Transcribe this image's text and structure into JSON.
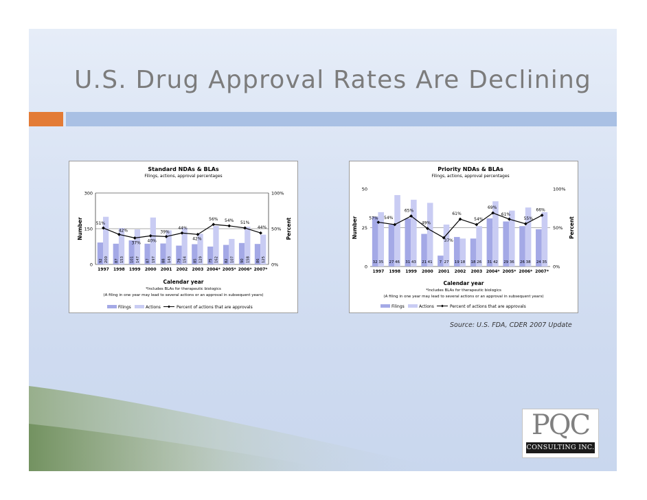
{
  "slide": {
    "title": "U.S. Drug Approval Rates Are Declining",
    "source": "Source: U.S. FDA, CDER 2007 Update",
    "colors": {
      "orange_bar": "#e37b36",
      "blue_bar": "#a9c0e4",
      "filings": "#a4a9e6",
      "actions": "#c9ccf3",
      "line": "#000000"
    }
  },
  "logo": {
    "name": "PQC",
    "subtitle": "CONSULTING INC."
  },
  "chart_data": [
    {
      "type": "bar+line",
      "title": "Standard NDAs & BLAs",
      "subtitle": "Filings, actions, approval percentages",
      "xlabel": "Calendar year",
      "ylabel": "Number",
      "y2label": "Percent",
      "ylim": [
        0,
        300
      ],
      "y_ticks": [
        "300",
        "150",
        "0"
      ],
      "y2_ticks": [
        "100%",
        "50%",
        "0%"
      ],
      "categories": [
        "1997",
        "1998",
        "1999",
        "2000",
        "2001",
        "2002",
        "2003",
        "2004*",
        "2005*",
        "2006*",
        "2007*"
      ],
      "series": [
        {
          "name": "Filings",
          "values": [
            92,
            87,
            101,
            87,
            88,
            79,
            85,
            75,
            82,
            90,
            86
          ]
        },
        {
          "name": "Actions",
          "values": [
            200,
            153,
            147,
            197,
            143,
            154,
            129,
            162,
            107,
            158,
            125
          ]
        },
        {
          "name": "Percent of actions that are approvals",
          "values": [
            51,
            42,
            37,
            40,
            39,
            44,
            42,
            56,
            54,
            51,
            44
          ]
        }
      ],
      "value_labels": [
        [
          "92",
          "200"
        ],
        [
          "87",
          "153"
        ],
        [
          "101",
          "147"
        ],
        [
          "87",
          "197"
        ],
        [
          "88",
          "143"
        ],
        [
          "79",
          "154"
        ],
        [
          "85",
          "129"
        ],
        [
          "75",
          "162"
        ],
        [
          "82",
          "107"
        ],
        [
          "90",
          "158"
        ],
        [
          "86",
          "125"
        ]
      ],
      "pct_labels": [
        "51%",
        "42%",
        "37%",
        "40%",
        "39%",
        "44%",
        "42%",
        "56%",
        "54%",
        "51%",
        "44%"
      ],
      "footnote1": "*Includes BLAs for therapeutic biologics",
      "footnote2": "(A filing in one year may lead to several actions or an approval in subsequent years)",
      "legend": [
        "Filings",
        "Actions",
        "Percent of actions that are approvals"
      ]
    },
    {
      "type": "bar+line",
      "title": "Priority NDAs & BLAs",
      "subtitle": "Filings, actions, approval percentages",
      "xlabel": "Calendar year",
      "ylabel": "Number",
      "y2label": "Percent",
      "ylim": [
        0,
        50
      ],
      "y_ticks": [
        "50",
        "25",
        "0"
      ],
      "y2_ticks": [
        "100%",
        "50%",
        "0%"
      ],
      "categories": [
        "1997",
        "1998",
        "1999",
        "2000",
        "2001",
        "2002",
        "2003",
        "2004*",
        "2005*",
        "2006*",
        "2007*"
      ],
      "series": [
        {
          "name": "Filings",
          "values": [
            32,
            27,
            31,
            21,
            7,
            19,
            18,
            31,
            29,
            26,
            24
          ]
        },
        {
          "name": "Actions",
          "values": [
            35,
            46,
            43,
            41,
            27,
            18,
            26,
            42,
            36,
            38,
            35
          ]
        },
        {
          "name": "Percent of actions that are approvals",
          "values": [
            57,
            54,
            65,
            49,
            37,
            61,
            54,
            69,
            61,
            55,
            66
          ]
        }
      ],
      "value_labels": [
        [
          "32",
          "35"
        ],
        [
          "27",
          "46"
        ],
        [
          "31",
          "43"
        ],
        [
          "21",
          "41"
        ],
        [
          "7",
          "27"
        ],
        [
          "19",
          "18"
        ],
        [
          "18",
          "26"
        ],
        [
          "31",
          "42"
        ],
        [
          "29",
          "36"
        ],
        [
          "26",
          "38"
        ],
        [
          "24",
          "35"
        ]
      ],
      "pct_labels": [
        "57%",
        "54%",
        "65%",
        "49%",
        "37%",
        "61%",
        "54%",
        "69%",
        "61%",
        "55%",
        "66%"
      ],
      "footnote1": "*Includes BLAs for therapeutic biologics",
      "footnote2": "(A filing in one year may lead to several actions or an approval in subsequent years)",
      "legend": [
        "Filings",
        "Actions",
        "Percent of actions that are approvals"
      ]
    }
  ]
}
